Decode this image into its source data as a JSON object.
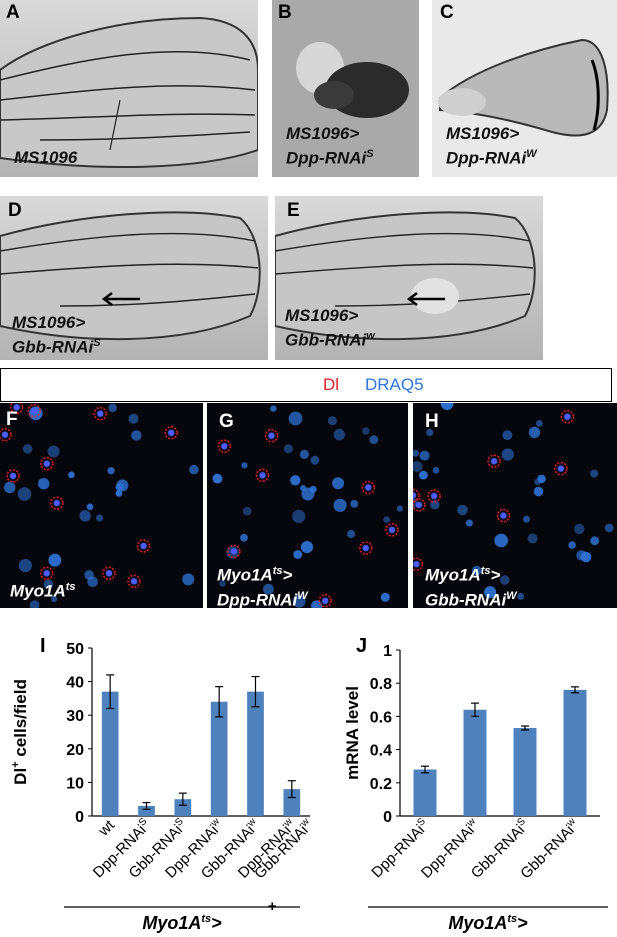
{
  "panels": {
    "A": {
      "letter": "A",
      "genotype_lines": [
        "MS1096"
      ]
    },
    "B": {
      "letter": "B",
      "genotype_lines": [
        "MS1096>",
        "Dpp-RNAi"
      ],
      "sup": "S"
    },
    "C": {
      "letter": "C",
      "genotype_lines": [
        "MS1096>",
        "Dpp-RNAi"
      ],
      "sup": "W"
    },
    "D": {
      "letter": "D",
      "genotype_lines": [
        "MS1096>",
        "Gbb-RNAi"
      ],
      "sup": "S"
    },
    "E": {
      "letter": "E",
      "genotype_lines": [
        "MS1096>",
        "Gbb-RNAi"
      ],
      "sup": "w"
    },
    "F": {
      "letter": "F",
      "genotype": "Myo1A",
      "sup": "ts"
    },
    "G": {
      "letter": "G",
      "genotype_lines": [
        "Myo1A",
        ">"
      ],
      "sup": "ts",
      "line2": "Dpp-RNAi",
      "sup2": "W"
    },
    "H": {
      "letter": "H",
      "genotype_lines": [
        "Myo1A",
        ">"
      ],
      "sup": "ts",
      "line2": "Gbb-RNAi",
      "sup2": "W"
    }
  },
  "legend": {
    "dl": "Dl",
    "draq5": "DRAQ5"
  },
  "colors": {
    "dl": "#e0202a",
    "draq5": "#2f74d8",
    "bar": "#4f81bd"
  },
  "chart_data": [
    {
      "panel": "I",
      "type": "bar",
      "ylabel": "Dl+ cells/field",
      "ylabel_main": "Dl",
      "ylabel_sup": "+",
      "ylabel_rest": " cells/field",
      "ylim": [
        0,
        50
      ],
      "yticks": [
        0,
        10,
        20,
        30,
        40,
        50
      ],
      "categories": [
        "wt",
        "Dpp-RNAi^S",
        "Gbb-RNAi^S",
        "Dpp-RNAi^w",
        "Gbb-RNAi^w",
        "Dpp-RNAi^w + Gbb-RNAi^w"
      ],
      "category_labels": [
        {
          "main": "wt",
          "sup": ""
        },
        {
          "main": "Dpp-RNAi",
          "sup": "S"
        },
        {
          "main": "Gbb-RNAi",
          "sup": "S"
        },
        {
          "main": "Dpp-RNAi",
          "sup": "w"
        },
        {
          "main": "Gbb-RNAi",
          "sup": "w"
        },
        {
          "main": "Dpp-RNAi",
          "sup": "w"
        }
      ],
      "extra_label": "+",
      "extra_label2": {
        "main": "Gbb-RNAi",
        "sup": "w"
      },
      "values": [
        37,
        3,
        5,
        34,
        37,
        8
      ],
      "errors": [
        5,
        1,
        1.8,
        4.5,
        4.5,
        2.5
      ],
      "group_label": {
        "main": "Myo1A",
        "sup": "ts",
        "tail": ">"
      }
    },
    {
      "panel": "J",
      "type": "bar",
      "ylabel": "mRNA level",
      "ylim": [
        0,
        1
      ],
      "yticks": [
        "0",
        "0.2",
        "0.4",
        "0.6",
        "0.8",
        "1"
      ],
      "yticks_num": [
        0,
        0.2,
        0.4,
        0.6,
        0.8,
        1
      ],
      "categories": [
        "Dpp-RNAi^S",
        "Dpp-RNAi^w",
        "Gbb-RNAi^S",
        "Gbb-RNAi^w"
      ],
      "category_labels": [
        {
          "main": "Dpp-RNAi",
          "sup": "S"
        },
        {
          "main": "Dpp-RNAi",
          "sup": "w"
        },
        {
          "main": "Gbb-RNAi",
          "sup": "S"
        },
        {
          "main": "Gbb-RNAi",
          "sup": "w"
        }
      ],
      "values": [
        0.28,
        0.64,
        0.53,
        0.76
      ],
      "errors": [
        0.02,
        0.04,
        0.012,
        0.018
      ],
      "group_label": {
        "main": "Myo1A",
        "sup": "ts",
        "tail": ">"
      }
    }
  ],
  "panel_letters": {
    "I": "I",
    "J": "J"
  }
}
